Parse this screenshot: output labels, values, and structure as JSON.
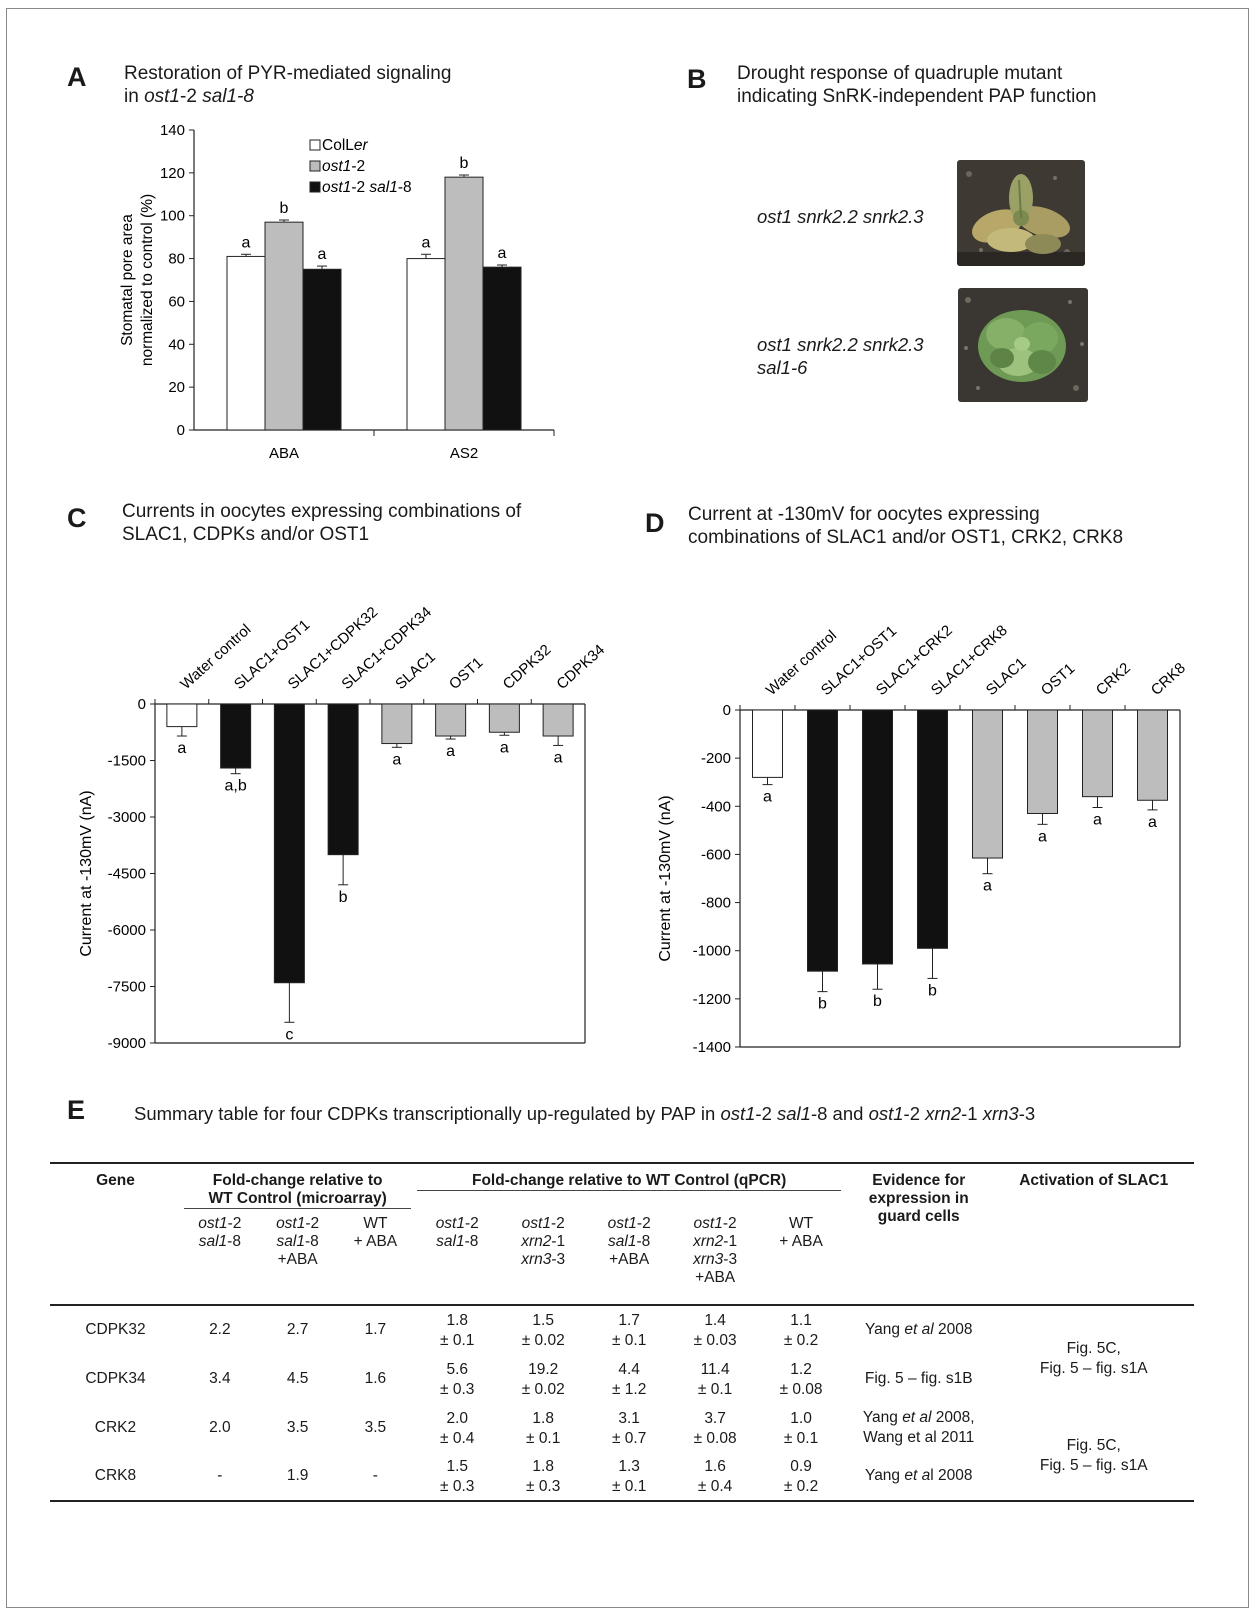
{
  "panelA": {
    "letter": "A",
    "title_html": "Restoration of PYR-mediated signaling<br>in <i>ost1</i>-2 <i>sal1-8</i>",
    "chart_data": {
      "type": "bar",
      "categories": [
        "ABA",
        "AS2"
      ],
      "ylabel": "Stomatal pore area normalized to control (%)",
      "ylabel_lines": [
        "Stomatal pore area",
        "normalized to control (%)"
      ],
      "ylim": [
        0,
        140
      ],
      "yticks": [
        0,
        20,
        40,
        60,
        80,
        100,
        120,
        140
      ],
      "legend_position": "top-center",
      "series": [
        {
          "name": "ColLer",
          "name_html": "ColL<i>er</i>",
          "color": "#ffffff",
          "values": [
            81,
            80
          ],
          "errors": [
            1,
            2
          ],
          "letters": [
            "a",
            "a"
          ]
        },
        {
          "name": "ost1-2",
          "name_html": "<i>ost1</i>-2",
          "color": "#bdbdbd",
          "values": [
            97,
            118
          ],
          "errors": [
            1,
            1
          ],
          "letters": [
            "b",
            "b"
          ]
        },
        {
          "name": "ost1-2 sal1-8",
          "name_html": "<i>ost1</i>-2 <i>sal1</i>-8",
          "color": "#111111",
          "values": [
            75,
            76
          ],
          "errors": [
            1.5,
            1
          ],
          "letters": [
            "a",
            "a"
          ]
        }
      ]
    }
  },
  "panelB": {
    "letter": "B",
    "title_html": "Drought response of quadruple mutant<br>indicating SnRK-independent PAP function",
    "rows": [
      {
        "label_html": "<i>ost1 snrk2.2 snrk2.3</i>"
      },
      {
        "label_html": "<i>ost1 snrk2.2 snrk2.3<br>sal1-6</i>"
      }
    ]
  },
  "panelC": {
    "letter": "C",
    "title_html": "Currents in oocytes expressing combinations of<br>SLAC1, CDPKs and/or OST1",
    "chart_data": {
      "type": "bar",
      "categories": [
        "Water control",
        "SLAC1+OST1",
        "SLAC1+CDPK32",
        "SLAC1+CDPK34",
        "SLAC1",
        "OST1",
        "CDPK32",
        "CDPK34"
      ],
      "values": [
        -600,
        -1700,
        -7400,
        -4000,
        -1050,
        -850,
        -750,
        -850
      ],
      "errors": [
        250,
        150,
        1050,
        800,
        100,
        80,
        80,
        250
      ],
      "colors": [
        "#ffffff",
        "#111111",
        "#111111",
        "#111111",
        "#bdbdbd",
        "#bdbdbd",
        "#bdbdbd",
        "#bdbdbd"
      ],
      "letters": [
        "a",
        "a,b",
        "c",
        "b",
        "a",
        "a",
        "a",
        "a"
      ],
      "ylabel": "Current at -130mV (nA)",
      "ylim": [
        -9000,
        0
      ],
      "yticks": [
        0,
        -1500,
        -3000,
        -4500,
        -6000,
        -7500,
        -9000
      ]
    }
  },
  "panelD": {
    "letter": "D",
    "title_html": "Current at -130mV for oocytes expressing<br>combinations of SLAC1 and/or OST1, CRK2, CRK8",
    "chart_data": {
      "type": "bar",
      "categories": [
        "Water control",
        "SLAC1+OST1",
        "SLAC1+CRK2",
        "SLAC1+CRK8",
        "SLAC1",
        "OST1",
        "CRK2",
        "CRK8"
      ],
      "values": [
        -280,
        -1085,
        -1055,
        -990,
        -615,
        -430,
        -360,
        -375
      ],
      "errors": [
        30,
        85,
        105,
        125,
        65,
        45,
        45,
        40
      ],
      "colors": [
        "#ffffff",
        "#111111",
        "#111111",
        "#111111",
        "#bdbdbd",
        "#bdbdbd",
        "#bdbdbd",
        "#bdbdbd"
      ],
      "letters": [
        "a",
        "b",
        "b",
        "b",
        "a",
        "a",
        "a",
        "a"
      ],
      "ylabel": "Current at -130mV (nA)",
      "ylim": [
        -1400,
        0
      ],
      "yticks": [
        0,
        -200,
        -400,
        -600,
        -800,
        -1000,
        -1200,
        -1400
      ]
    }
  },
  "panelE": {
    "letter": "E",
    "title_html": "Summary table for four CDPKs transcriptionally up-regulated by PAP in <i>ost1</i>-2 <i>sal1</i>-8 and <i>ost1</i>-2 <i>xrn2</i>-1 <i>xrn3</i>-3",
    "headers": {
      "gene": "Gene",
      "microarray_html": "Fold-change relative to<br>WT Control (microarray)",
      "qpcr": "Fold-change relative to WT Control  (qPCR)",
      "evidence_html": "Evidence for<br>expression in<br>guard cells",
      "activation": "Activation of SLAC1",
      "subcols_html": [
        "<i>ost1</i>-2<br><i>sal1</i>-8",
        "<i>ost1</i>-2<br><i>sal1</i>-8<br>+ABA",
        "WT<br>+ ABA",
        "<i>ost1</i>-2<br><i>sal1</i>-8",
        "<i>ost1</i>-2<br><i>xrn2</i>-1<br><i>xrn3</i>-3",
        "<i>ost1</i>-2<br><i>sal1</i>-8<br>+ABA",
        "<i>ost1</i>-2<br><i>xrn2</i>-1<br><i>xrn3</i>-3<br>+ABA",
        "WT<br>+ ABA"
      ]
    },
    "rows": [
      {
        "gene": "CDPK32",
        "micro": [
          "2.2",
          "2.7",
          "1.7"
        ],
        "qpcr": [
          [
            "1.8",
            "± 0.1"
          ],
          [
            "1.5",
            "± 0.02"
          ],
          [
            "1.7",
            "± 0.1"
          ],
          [
            "1.4",
            "± 0.03"
          ],
          [
            "1.1",
            "± 0.2"
          ]
        ],
        "evidence_html": "Yang <i>et al</i> 2008"
      },
      {
        "gene": "CDPK34",
        "micro": [
          "3.4",
          "4.5",
          "1.6"
        ],
        "qpcr": [
          [
            "5.6",
            "± 0.3"
          ],
          [
            "19.2",
            "± 0.02"
          ],
          [
            "4.4",
            "± 1.2"
          ],
          [
            "11.4",
            "± 0.1"
          ],
          [
            "1.2",
            "± 0.08"
          ]
        ],
        "evidence_html": "Fig. 5 – fig. s1B"
      },
      {
        "gene": "CRK2",
        "micro": [
          "2.0",
          "3.5",
          "3.5"
        ],
        "qpcr": [
          [
            "2.0",
            "± 0.4"
          ],
          [
            "1.8",
            "± 0.1"
          ],
          [
            "3.1",
            "± 0.7"
          ],
          [
            "3.7",
            "± 0.08"
          ],
          [
            "1.0",
            "± 0.1"
          ]
        ],
        "evidence_html": "Yang <i>et al</i> 2008,<br>Wang et al 2011"
      },
      {
        "gene": "CRK8",
        "micro": [
          "-",
          "1.9",
          "-"
        ],
        "qpcr": [
          [
            "1.5",
            "± 0.3"
          ],
          [
            "1.8",
            "± 0.3"
          ],
          [
            "1.3",
            "± 0.1"
          ],
          [
            "1.6",
            "± 0.4"
          ],
          [
            "0.9",
            "± 0.2"
          ]
        ],
        "evidence_html": "Yang <i>et a</i>l 2008"
      }
    ],
    "activation_groups_html": [
      "Fig. 5C,<br>Fig. 5 – fig. s1A",
      "Fig. 5C,<br>Fig. 5 – fig. s1A"
    ]
  }
}
